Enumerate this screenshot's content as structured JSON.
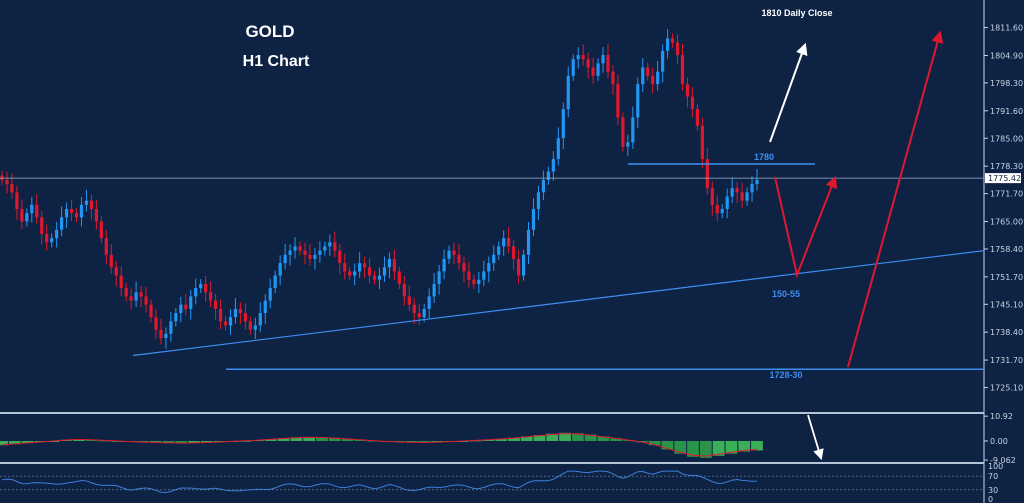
{
  "chart_data": {
    "type": "candlestick",
    "title": "GOLD",
    "subtitle": "H1 Chart",
    "annotation_top": "1810 Daily Close",
    "current_price": "1775.42",
    "ylim": [
      1720.9,
      1816.3
    ],
    "y_ticks": [
      "1811.60",
      "1804.90",
      "1798.30",
      "1791.60",
      "1785.00",
      "1778.30",
      "1771.70",
      "1765.00",
      "1758.40",
      "1751.70",
      "1745.10",
      "1738.40",
      "1731.70",
      "1725.10"
    ],
    "levels": [
      {
        "label": "1780",
        "price": 1778.8
      },
      {
        "label": "1728-30",
        "price": 1729.5
      }
    ],
    "trendline": {
      "label": "150-55",
      "from_price": 1732.8,
      "to_price": 1758.0
    },
    "candles_close": [
      1775,
      1774,
      1772,
      1768,
      1765,
      1767,
      1769,
      1766,
      1762,
      1760,
      1761,
      1763,
      1766,
      1768,
      1767,
      1766,
      1769,
      1770,
      1768,
      1765,
      1761,
      1757,
      1754,
      1752,
      1749,
      1747,
      1746,
      1748,
      1747,
      1745,
      1742,
      1739,
      1737,
      1738,
      1741,
      1743,
      1745,
      1744,
      1747,
      1749,
      1750,
      1748,
      1746,
      1744,
      1741,
      1740,
      1742,
      1744,
      1743,
      1741,
      1739,
      1740,
      1743,
      1746,
      1749,
      1752,
      1755,
      1757,
      1758,
      1759,
      1758,
      1757,
      1756,
      1757,
      1758,
      1759,
      1760,
      1758,
      1755,
      1753,
      1752,
      1753,
      1755,
      1754,
      1752,
      1751,
      1752,
      1754,
      1756,
      1753,
      1750,
      1747,
      1745,
      1743,
      1742,
      1744,
      1747,
      1750,
      1753,
      1756,
      1758,
      1757,
      1755,
      1753,
      1751,
      1750,
      1751,
      1753,
      1755,
      1757,
      1759,
      1761,
      1759,
      1756,
      1752,
      1757,
      1763,
      1768,
      1772,
      1775,
      1777,
      1780,
      1785,
      1792,
      1800,
      1804,
      1805,
      1804,
      1802,
      1800,
      1803,
      1805,
      1801,
      1798,
      1790,
      1783,
      1784,
      1790,
      1798,
      1802,
      1800,
      1798,
      1801,
      1806,
      1809,
      1808,
      1805,
      1798,
      1795,
      1792,
      1788,
      1780,
      1773,
      1769,
      1767,
      1768,
      1771,
      1773,
      1772,
      1770,
      1772,
      1774,
      1775
    ],
    "ao_histogram": [
      -2,
      -1.5,
      -1,
      -0.5,
      0,
      0.5,
      0.8,
      0.6,
      0.3,
      0,
      -0.3,
      -0.6,
      -0.8,
      -1,
      -1.1,
      -1,
      -0.8,
      -0.5,
      -0.2,
      0.1,
      0.4,
      0.8,
      1.2,
      1.6,
      1.8,
      1.7,
      1.4,
      1,
      0.6,
      0.2,
      -0.2,
      -0.5,
      -0.7,
      -0.8,
      -0.6,
      -0.3,
      0,
      0.3,
      0.6,
      1,
      1.4,
      2,
      2.6,
      3.2,
      3.6,
      3.4,
      2.8,
      2,
      1.2,
      0.4,
      -0.6,
      -2,
      -4,
      -6,
      -7.5,
      -8,
      -7,
      -6,
      -5,
      -4.5
    ],
    "rsi_ticks": [
      "100",
      "70",
      "30",
      "0"
    ]
  }
}
